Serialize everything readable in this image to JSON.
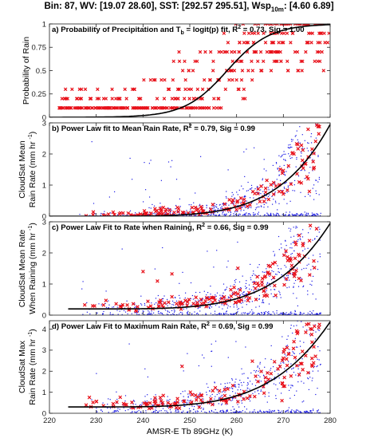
{
  "figure": {
    "title_prefix": "Bin: 87,  WV: [19.07 28.60],   SST: [292.57 295.51],   Wsp",
    "title_sub": "10m",
    "title_suffix": ": [4.60 6.89]",
    "xlabel": "AMSR-E Tb 89GHz (K)"
  },
  "chart_data": [
    {
      "type": "scatter",
      "panel": "a",
      "title_main": "a) Probability of Precipitation and T",
      "title_sub": "b",
      "title_tail": " = logit(p) fit, R",
      "title_sup": "2",
      "title_end": " = 0.73, Sig = 1.00",
      "ylabel_lines": [
        "Probability of Rain"
      ],
      "xlim": [
        220,
        280
      ],
      "ylim": [
        0,
        1
      ],
      "yticks": [
        0,
        0.25,
        0.5,
        0.75,
        1
      ],
      "ytick_labels": [
        "0",
        "0.25",
        "0.5",
        "0.75",
        "1"
      ],
      "fit": {
        "kind": "logistic",
        "x0": 258,
        "k": 0.22,
        "color": "#000000"
      },
      "series": [
        {
          "kind": "data",
          "color": "#e8111a"
        }
      ]
    },
    {
      "type": "scatter",
      "panel": "b",
      "title_main": "b) Power Law fit to Mean Rain Rate, R",
      "title_sup": "2",
      "title_end": " = 0.79, Sig = 0.99",
      "ylabel_lines": [
        "CloudSat Mean",
        "Rain Rate"
      ],
      "ylabel_unit": "(mm hr",
      "ylabel_unit_sup": "-1",
      "ylabel_unit_end": ")",
      "xlim": [
        220,
        280
      ],
      "ylim": [
        0,
        3
      ],
      "yticks": [
        0,
        1,
        2,
        3
      ],
      "ytick_labels": [
        "0",
        "1",
        "2",
        "3"
      ],
      "fit": {
        "kind": "power",
        "a": 0.0,
        "b": 2.9,
        "x_start": 220,
        "x_end": 280,
        "y_end": 2.95,
        "p": 5.6
      },
      "series": [
        {
          "kind": "individual",
          "color": "#1a1ae6"
        },
        {
          "kind": "bin-mean",
          "color": "#e8111a"
        }
      ]
    },
    {
      "type": "scatter",
      "panel": "c",
      "title_main": "c) Power Law Fit to Rate when Raining, R",
      "title_sup": "2",
      "title_end": " = 0.66, Sig = 0.99",
      "ylabel_lines": [
        "CloudSat Mean Rate",
        "When Raining"
      ],
      "ylabel_unit": "(mm hr",
      "ylabel_unit_sup": "-1",
      "ylabel_unit_end": ")",
      "xlim": [
        220,
        280
      ],
      "ylim": [
        0,
        3
      ],
      "yticks": [
        0,
        1,
        2,
        3
      ],
      "ytick_labels": [
        "0",
        "1",
        "2",
        "3"
      ],
      "fit": {
        "kind": "power",
        "x_start": 224,
        "x_end": 280,
        "y_start": 0.2,
        "y_end": 2.95,
        "p": 4.8
      },
      "series": [
        {
          "kind": "individual",
          "color": "#1a1ae6"
        },
        {
          "kind": "bin-mean",
          "color": "#e8111a"
        }
      ]
    },
    {
      "type": "scatter",
      "panel": "d",
      "title_main": "d) Power Law Fit to Maximum Rain Rate, R",
      "title_sup": "2",
      "title_end": " = 0.69, Sig = 0.99",
      "ylabel_lines": [
        "CloudSat Max",
        "Rain Rate"
      ],
      "ylabel_unit": "(mm hr",
      "ylabel_unit_sup": "-1",
      "ylabel_unit_end": ")",
      "xlim": [
        220,
        280
      ],
      "ylim": [
        0,
        4.4
      ],
      "yticks": [
        0,
        1,
        2,
        3,
        4
      ],
      "ytick_labels": [
        "0",
        "1",
        "2",
        "3",
        "4"
      ],
      "xticks": [
        220,
        230,
        240,
        250,
        260,
        270,
        280
      ],
      "xtick_labels": [
        "220",
        "230",
        "240",
        "250",
        "260",
        "270",
        "280"
      ],
      "fit": {
        "kind": "power",
        "x_start": 224,
        "x_end": 280,
        "y_start": 0.3,
        "y_end": 4.35,
        "p": 4.6
      },
      "series": [
        {
          "kind": "individual",
          "color": "#1a1ae6"
        },
        {
          "kind": "bin-max",
          "color": "#e8111a"
        }
      ]
    }
  ]
}
